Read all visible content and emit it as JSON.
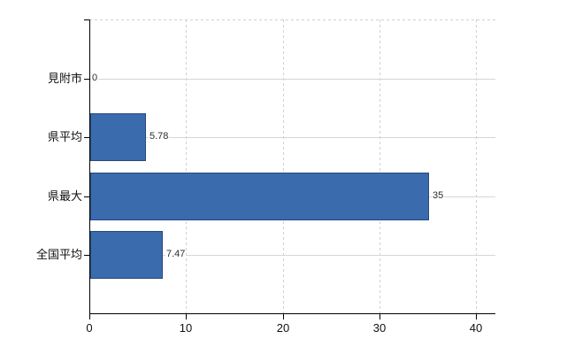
{
  "chart_data": {
    "type": "bar",
    "orientation": "horizontal",
    "title": "",
    "xlabel": "",
    "ylabel": "",
    "categories": [
      "見附市",
      "県平均",
      "県最大",
      "全国平均"
    ],
    "values": [
      0,
      5.78,
      35,
      7.47
    ],
    "value_labels": [
      "0",
      "5.78",
      "35",
      "7.47"
    ],
    "xlim": [
      0,
      42
    ],
    "xticks": [
      0,
      10,
      20,
      30,
      40
    ],
    "xtick_labels": [
      "0",
      "10",
      "20",
      "30",
      "40"
    ],
    "grid": "on",
    "legend": "none",
    "colors": {
      "bar_fill": "#3A6BAD",
      "bar_border": "#26497E",
      "axis_line": "#000000",
      "gridline_solid": "#D2D8D0",
      "gridline_dashed": "#D3CFD3",
      "background": "#FFFFFF"
    }
  }
}
